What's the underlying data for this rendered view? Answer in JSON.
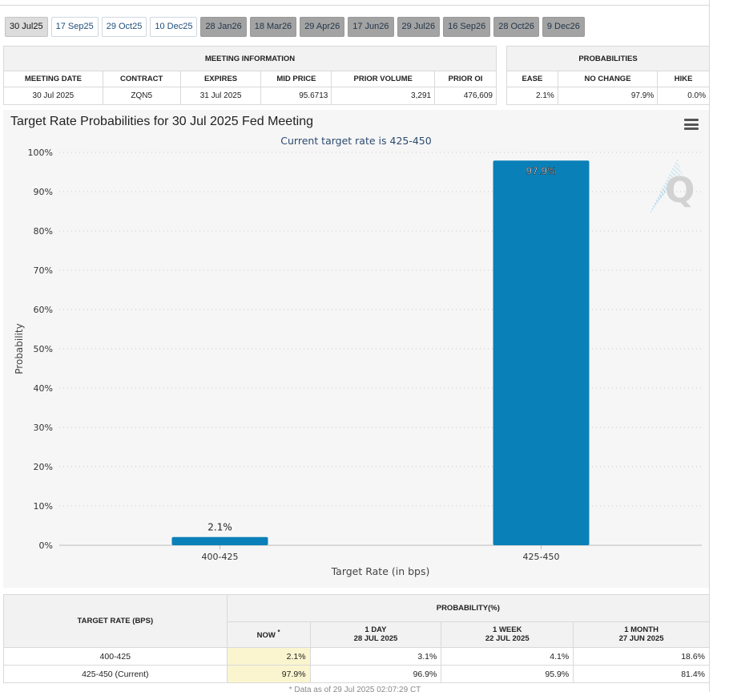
{
  "tabs": [
    {
      "label": "30 Jul25",
      "style": "active"
    },
    {
      "label": "17 Sep25",
      "style": "white"
    },
    {
      "label": "29 Oct25",
      "style": "white"
    },
    {
      "label": "10 Dec25",
      "style": "white"
    },
    {
      "label": "28 Jan26",
      "style": "gray"
    },
    {
      "label": "18 Mar26",
      "style": "gray"
    },
    {
      "label": "29 Apr26",
      "style": "gray"
    },
    {
      "label": "17 Jun26",
      "style": "gray"
    },
    {
      "label": "29 Jul26",
      "style": "gray"
    },
    {
      "label": "16 Sep26",
      "style": "gray"
    },
    {
      "label": "28 Oct26",
      "style": "gray"
    },
    {
      "label": "9 Dec26",
      "style": "gray"
    }
  ],
  "meeting_info": {
    "header": "MEETING INFORMATION",
    "columns": [
      "MEETING DATE",
      "CONTRACT",
      "EXPIRES",
      "MID PRICE",
      "PRIOR VOLUME",
      "PRIOR OI"
    ],
    "values": [
      "30 Jul 2025",
      "ZQN5",
      "31 Jul 2025",
      "95.6713",
      "3,291",
      "476,609"
    ]
  },
  "probabilities": {
    "header": "PROBABILITIES",
    "columns": [
      "EASE",
      "NO CHANGE",
      "HIKE"
    ],
    "values": [
      "2.1%",
      "97.9%",
      "0.0%"
    ]
  },
  "chart": {
    "title": "Target Rate Probabilities for 30 Jul 2025 Fed Meeting",
    "menu_icon": "hamburger-menu-icon",
    "watermark_icon": "quikstrike-q-logo-icon",
    "bar_color": "#0a80b8"
  },
  "chart_data": {
    "type": "bar",
    "title": "Target Rate Probabilities for 30 Jul 2025 Fed Meeting",
    "subtitle": "Current target rate is 425-450",
    "categories": [
      "400-425",
      "425-450"
    ],
    "values": [
      2.1,
      97.9
    ],
    "data_labels": [
      "2.1%",
      "97.9%"
    ],
    "xlabel": "Target Rate (in bps)",
    "ylabel": "Probability",
    "ylim": [
      0,
      100
    ],
    "yticks": [
      0,
      10,
      20,
      30,
      40,
      50,
      60,
      70,
      80,
      90,
      100
    ],
    "ytick_labels": [
      "0%",
      "10%",
      "20%",
      "30%",
      "40%",
      "50%",
      "60%",
      "70%",
      "80%",
      "90%",
      "100%"
    ],
    "grid": true
  },
  "bottom_table": {
    "target_rate_header": "TARGET RATE (BPS)",
    "probability_header": "PROBABILITY(%)",
    "col_now": "NOW",
    "col_now_mark": "*",
    "col_1day": [
      "1 DAY",
      "28 JUL 2025"
    ],
    "col_1week": [
      "1 WEEK",
      "22 JUL 2025"
    ],
    "col_1month": [
      "1 MONTH",
      "27 JUN 2025"
    ],
    "rows": [
      {
        "rate": "400-425",
        "now": "2.1%",
        "day": "3.1%",
        "week": "4.1%",
        "month": "18.6%"
      },
      {
        "rate": "425-450 (Current)",
        "now": "97.9%",
        "day": "96.9%",
        "week": "95.9%",
        "month": "81.4%"
      }
    ],
    "footnote": "* Data as of 29 Jul 2025 02:07:29 CT"
  }
}
